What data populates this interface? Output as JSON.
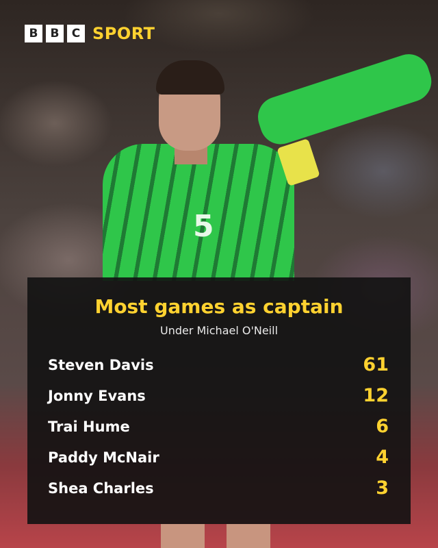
{
  "logo": {
    "letters": [
      "B",
      "B",
      "C"
    ],
    "sport": "SPORT"
  },
  "colors": {
    "accent": "#ffd230",
    "panel": "#121212",
    "shirt": "#2fc64a"
  },
  "photo": {
    "shirt_number": "5"
  },
  "table": {
    "title": "Most games as captain",
    "subtitle": "Under Michael O'Neill",
    "rows": [
      {
        "name": "Steven Davis",
        "value": "61"
      },
      {
        "name": "Jonny Evans",
        "value": "12"
      },
      {
        "name": "Trai Hume",
        "value": "6"
      },
      {
        "name": "Paddy McNair",
        "value": "4"
      },
      {
        "name": "Shea Charles",
        "value": "3"
      }
    ]
  }
}
